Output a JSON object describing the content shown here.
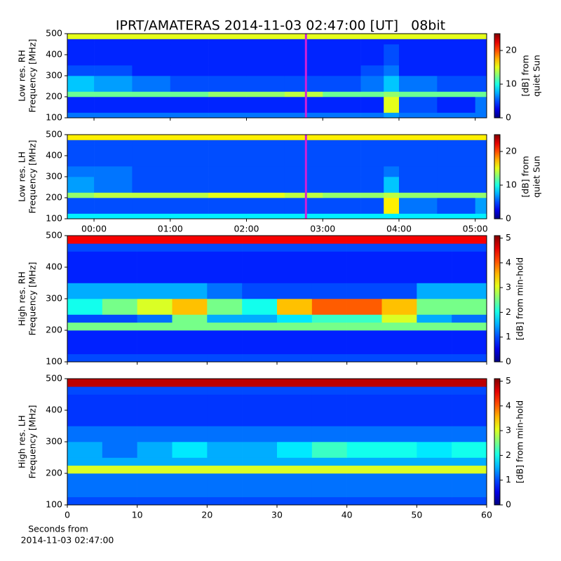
{
  "chart_data": [
    {
      "type": "heatmap",
      "title": "IPRT/AMATERAS 2014-11-03 02:47:00 [UT]   08bit",
      "ylabel": [
        "Low res. RH",
        "Frequency [MHz]"
      ],
      "xlim": [
        -0.35,
        5.15
      ],
      "xticks": [
        0,
        1,
        2,
        3,
        4,
        5
      ],
      "show_xticklabels": false,
      "ylim": [
        100,
        500
      ],
      "yticks": [
        100,
        200,
        300,
        400,
        500
      ],
      "xbins": [
        -0.35,
        0,
        0.5,
        1,
        1.5,
        2,
        2.5,
        3,
        3.5,
        3.8,
        4,
        4.5,
        5,
        5.15
      ],
      "ybins": [
        100,
        125,
        200,
        225,
        300,
        350,
        450,
        475,
        500
      ],
      "values": [
        [
          6,
          6,
          6,
          6,
          6,
          6,
          6,
          6,
          6,
          7,
          6,
          6,
          6,
          1
        ],
        [
          4,
          4,
          4,
          4,
          4,
          4,
          4,
          4,
          4,
          15,
          5,
          4,
          6,
          1
        ],
        [
          12,
          12,
          12,
          12,
          13,
          13,
          14,
          12,
          12,
          13,
          12,
          12,
          12,
          1
        ],
        [
          8,
          7,
          6,
          5,
          5,
          5,
          5,
          5,
          6,
          8,
          6,
          5,
          5,
          1
        ],
        [
          5,
          5,
          4,
          4,
          4,
          4,
          4,
          4,
          5,
          6,
          4,
          4,
          4,
          1
        ],
        [
          4,
          4,
          4,
          4,
          4,
          4,
          4,
          4,
          4,
          5,
          4,
          4,
          4,
          1
        ],
        [
          4,
          4,
          4,
          4,
          4,
          4,
          4,
          4,
          4,
          4,
          4,
          4,
          4,
          1
        ],
        [
          15,
          15,
          15,
          15,
          15,
          15,
          15,
          15,
          15,
          15,
          15,
          15,
          15,
          1
        ]
      ],
      "colormap": "jet",
      "marker_x": 2.78,
      "marker_color": "#d020d8",
      "colorbar": {
        "label": [
          "[dB] from",
          "quiet Sun"
        ],
        "lim": [
          0,
          25
        ],
        "ticks": [
          0,
          10,
          20
        ]
      }
    },
    {
      "type": "heatmap",
      "ylabel": [
        "Low res. LH",
        "Frequency [MHz]"
      ],
      "xlim": [
        -0.35,
        5.15
      ],
      "xticks": [
        {
          "value": 0,
          "label": "00:00"
        },
        {
          "value": 1,
          "label": "01:00"
        },
        {
          "value": 2,
          "label": "02:00"
        },
        {
          "value": 3,
          "label": "03:00"
        },
        {
          "value": 4,
          "label": "04:00"
        },
        {
          "value": 5,
          "label": "05:00"
        }
      ],
      "show_xticklabels": true,
      "ylim": [
        100,
        500
      ],
      "yticks": [
        100,
        200,
        300,
        400,
        500
      ],
      "xbins": [
        -0.35,
        0,
        0.5,
        1,
        1.5,
        2,
        2.5,
        3,
        3.5,
        3.8,
        4,
        4.5,
        5,
        5.15
      ],
      "ybins": [
        100,
        125,
        200,
        225,
        300,
        350,
        450,
        475,
        500
      ],
      "values": [
        [
          9,
          9,
          9,
          9,
          9,
          9,
          9,
          9,
          9,
          9,
          9,
          9,
          9,
          1
        ],
        [
          5,
          5,
          5,
          5,
          5,
          5,
          5,
          5,
          5,
          16,
          6,
          5,
          7,
          1
        ],
        [
          13,
          14,
          14,
          14,
          15,
          15,
          14,
          13,
          13,
          14,
          13,
          13,
          13,
          1
        ],
        [
          7,
          6,
          5,
          5,
          5,
          5,
          5,
          5,
          5,
          8,
          5,
          5,
          5,
          1
        ],
        [
          6,
          6,
          5,
          5,
          5,
          5,
          5,
          5,
          5,
          6,
          5,
          5,
          5,
          1
        ],
        [
          5,
          5,
          5,
          5,
          5,
          5,
          5,
          5,
          5,
          5,
          5,
          5,
          5,
          1
        ],
        [
          5,
          5,
          5,
          5,
          5,
          5,
          5,
          5,
          5,
          5,
          5,
          5,
          5,
          1
        ],
        [
          16,
          16,
          16,
          16,
          16,
          16,
          16,
          16,
          16,
          16,
          16,
          16,
          16,
          1
        ]
      ],
      "colormap": "jet",
      "marker_x": 2.78,
      "marker_color": "#d020d8",
      "colorbar": {
        "label": [
          "[dB] from",
          "quiet Sun"
        ],
        "lim": [
          0,
          25
        ],
        "ticks": [
          0,
          10,
          20
        ]
      }
    },
    {
      "type": "heatmap",
      "ylabel": [
        "High res. RH",
        "Frequency [MHz]"
      ],
      "xlim": [
        0,
        60
      ],
      "xticks": [
        0,
        10,
        20,
        30,
        40,
        50,
        60
      ],
      "show_xticklabels": false,
      "ylim": [
        100,
        500
      ],
      "yticks": [
        100,
        200,
        300,
        400,
        500
      ],
      "xbins": [
        0,
        5,
        10,
        15,
        20,
        25,
        30,
        35,
        40,
        45,
        50,
        55,
        60
      ],
      "ybins": [
        100,
        125,
        200,
        225,
        250,
        300,
        350,
        450,
        475,
        500
      ],
      "values": [
        [
          1,
          1,
          1,
          1,
          1,
          1,
          1,
          1,
          1,
          1,
          1,
          1
        ],
        [
          0.8,
          0.8,
          0.8,
          0.8,
          0.8,
          0.8,
          0.8,
          0.8,
          0.8,
          0.8,
          0.8,
          0.8
        ],
        [
          2.5,
          2.5,
          2.5,
          2.5,
          2.5,
          2.5,
          2.5,
          2.5,
          2.5,
          2.5,
          2.5,
          2.5
        ],
        [
          1,
          1,
          1.2,
          2.5,
          1.5,
          1.5,
          1.8,
          2.2,
          2.2,
          3,
          1.5,
          1.2
        ],
        [
          2,
          2.5,
          3,
          3.5,
          2.5,
          2,
          3.5,
          4,
          4,
          3.5,
          2.5,
          2.5
        ],
        [
          1.5,
          1.5,
          1.5,
          1.5,
          1.2,
          1,
          1,
          1,
          1,
          1,
          1.5,
          1.5
        ],
        [
          0.8,
          0.8,
          0.8,
          0.8,
          0.8,
          0.8,
          0.8,
          0.8,
          0.8,
          0.8,
          0.8,
          0.8
        ],
        [
          1,
          1,
          1,
          1,
          1,
          1,
          1,
          1,
          1,
          1,
          1,
          1
        ],
        [
          4.5,
          4.5,
          4.5,
          4.5,
          4.5,
          4.5,
          4.5,
          4.5,
          4.5,
          4.5,
          4.5,
          4.5
        ]
      ],
      "colormap": "jet",
      "colorbar": {
        "label": [
          "[dB] from min-hold"
        ],
        "lim": [
          0,
          5.1
        ],
        "ticks": [
          0,
          1,
          2,
          3,
          4,
          5
        ]
      }
    },
    {
      "type": "heatmap",
      "ylabel": [
        "High res. LH",
        "Frequency [MHz]"
      ],
      "xlabel": [
        "Seconds from",
        "2014-11-03 02:47:00"
      ],
      "xlim": [
        0,
        60
      ],
      "xticks": [
        0,
        10,
        20,
        30,
        40,
        50,
        60
      ],
      "show_xticklabels": true,
      "ylim": [
        100,
        500
      ],
      "yticks": [
        100,
        200,
        300,
        400,
        500
      ],
      "xbins": [
        0,
        5,
        10,
        15,
        20,
        25,
        30,
        35,
        40,
        45,
        50,
        55,
        60
      ],
      "ybins": [
        100,
        125,
        200,
        225,
        250,
        300,
        350,
        450,
        475,
        500
      ],
      "values": [
        [
          1,
          1,
          1,
          1,
          1,
          1,
          1,
          1,
          1,
          1,
          1,
          1
        ],
        [
          1.2,
          1.2,
          1.2,
          1.2,
          1.2,
          1.2,
          1.2,
          1.2,
          1.2,
          1.2,
          1.2,
          1.2
        ],
        [
          3,
          3,
          3,
          3,
          3,
          3,
          3,
          3,
          3,
          3,
          3,
          3
        ],
        [
          1.5,
          1.5,
          1.5,
          1.5,
          1.5,
          1.5,
          1.5,
          1.5,
          1.5,
          1.5,
          1.5,
          1.5
        ],
        [
          1.5,
          1.2,
          1.5,
          1.8,
          1.5,
          1.5,
          1.8,
          2.2,
          2,
          2,
          1.8,
          2
        ],
        [
          1.2,
          1.2,
          1.2,
          1.2,
          1.2,
          1.2,
          1.2,
          1.2,
          1.2,
          1.2,
          1.2,
          1.2
        ],
        [
          0.9,
          0.9,
          0.9,
          0.9,
          0.9,
          0.9,
          0.9,
          0.9,
          0.9,
          0.9,
          0.9,
          0.9
        ],
        [
          1,
          1,
          1,
          1,
          1,
          1,
          1,
          1,
          1,
          1,
          1,
          1
        ],
        [
          4.8,
          4.8,
          4.8,
          4.8,
          4.8,
          4.8,
          4.8,
          4.8,
          4.8,
          4.8,
          4.8,
          4.8
        ]
      ],
      "colormap": "jet",
      "colorbar": {
        "label": [
          "[dB] from min-hold"
        ],
        "lim": [
          0,
          5.1
        ],
        "ticks": [
          0,
          1,
          2,
          3,
          4,
          5
        ]
      }
    }
  ]
}
